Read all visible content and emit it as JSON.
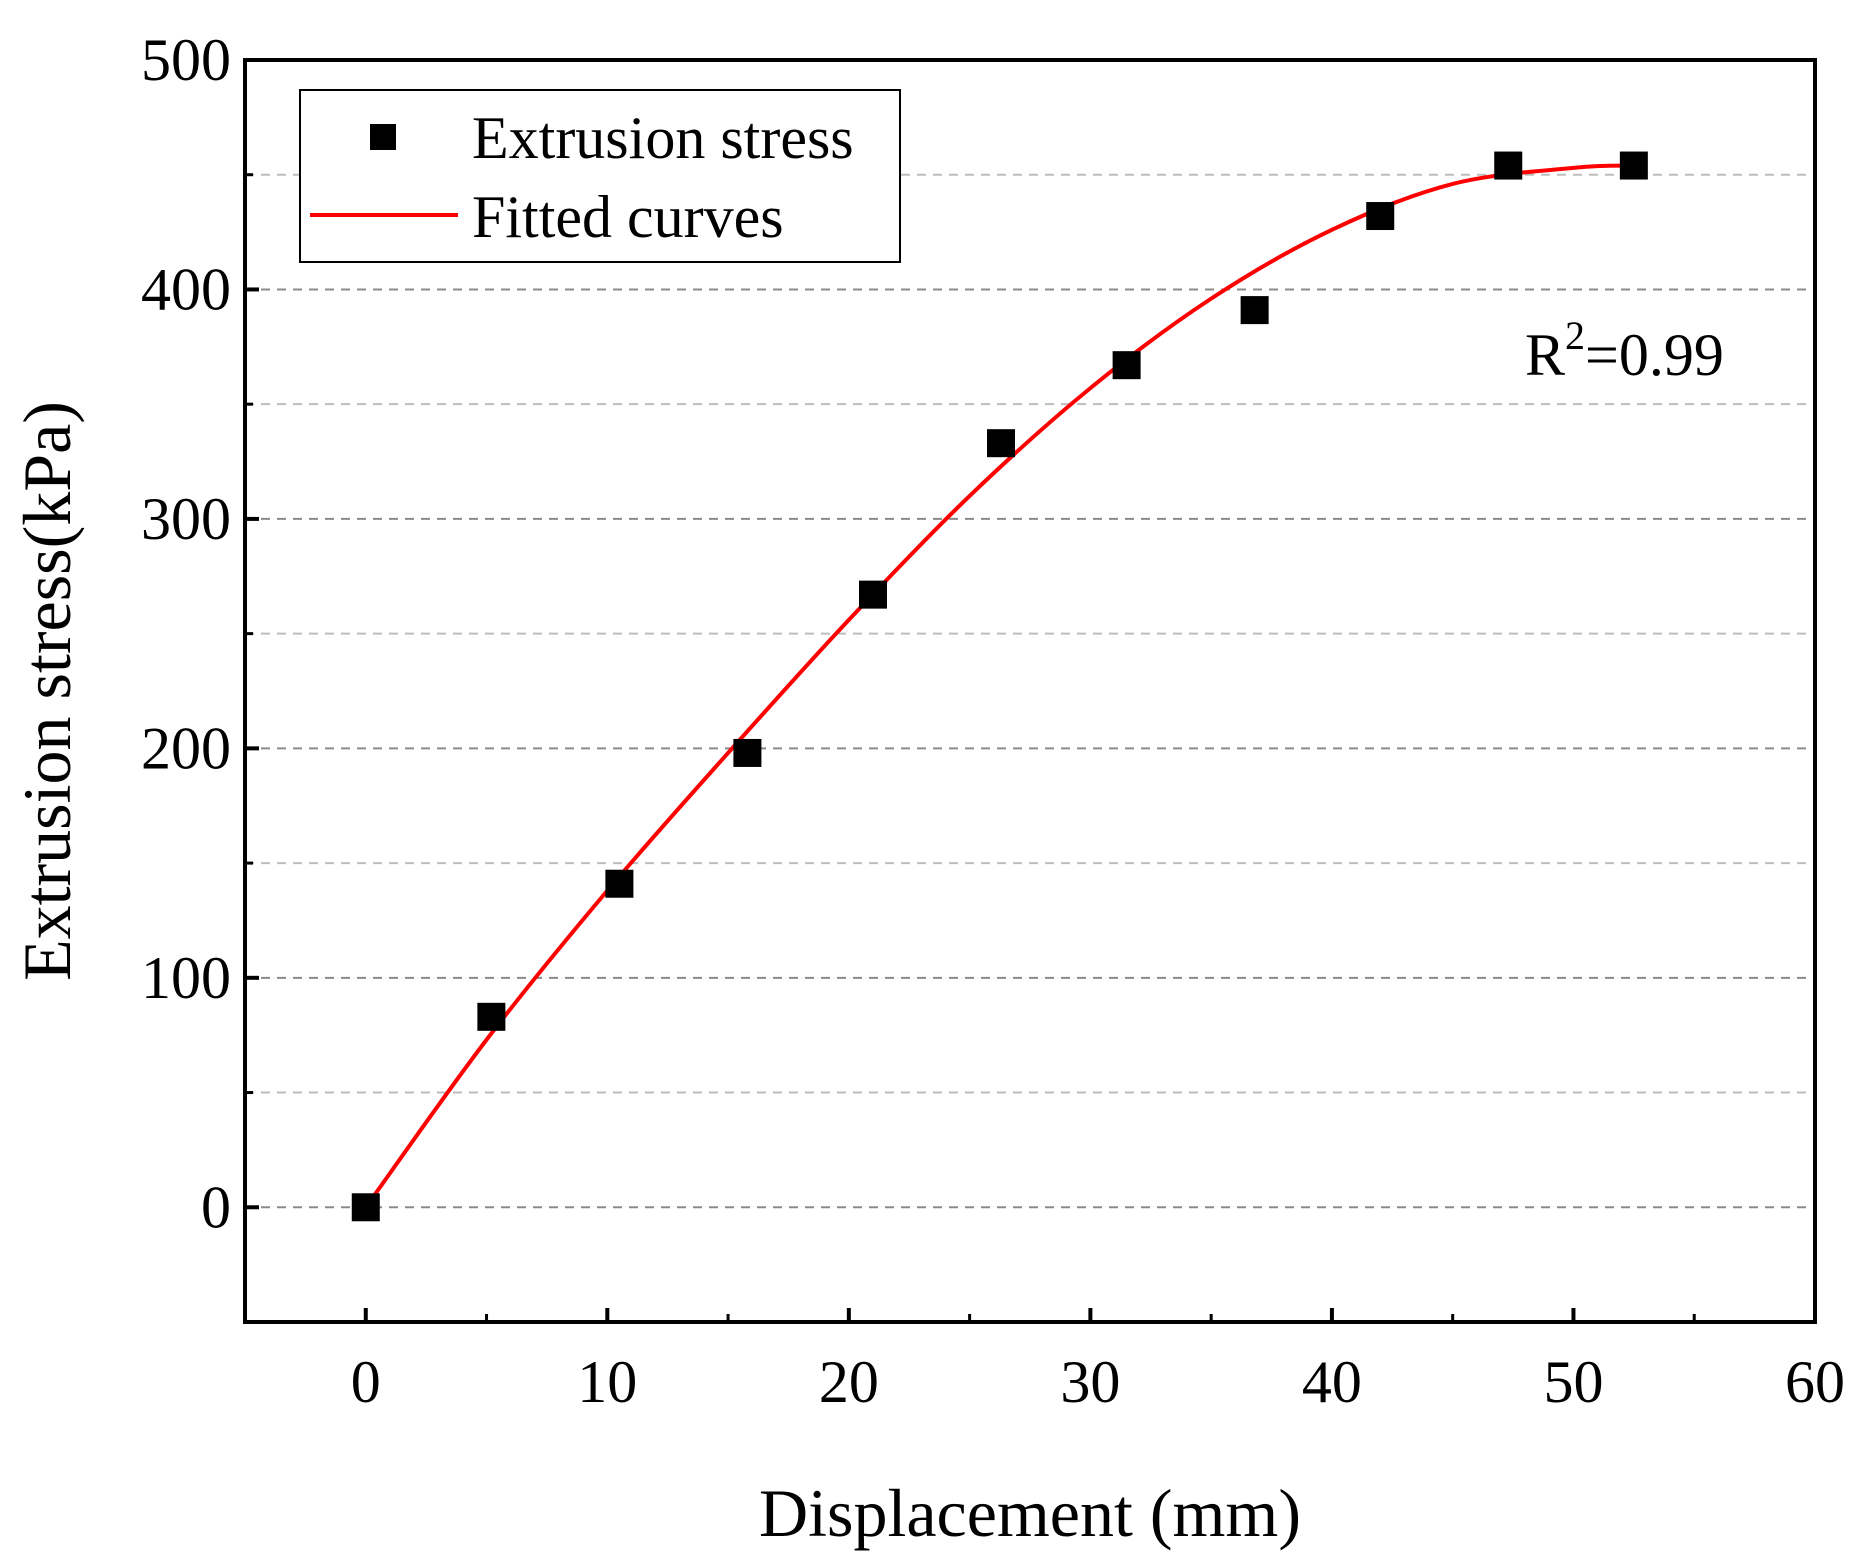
{
  "chart_data": {
    "type": "scatter",
    "xlabel": "Displacement (mm)",
    "ylabel": "Extrusion stress(kPa)",
    "xlim": [
      -5,
      60
    ],
    "ylim": [
      -50,
      500
    ],
    "xticks": [
      0,
      10,
      20,
      30,
      40,
      50,
      60
    ],
    "yticks": [
      0,
      100,
      200,
      300,
      400,
      500
    ],
    "grid": "horizontal dashed",
    "legend_position": "top-left",
    "series": [
      {
        "name": "Extrusion stress",
        "kind": "scatter",
        "marker": "square",
        "color": "#000000",
        "x": [
          0,
          5.2,
          10.5,
          15.8,
          21.0,
          26.3,
          31.5,
          36.8,
          42.0,
          47.3,
          52.5
        ],
        "y": [
          0,
          83,
          141,
          198,
          267,
          333,
          367,
          391,
          432,
          454,
          454
        ]
      },
      {
        "name": "Fitted curves",
        "kind": "line",
        "color": "#ff0000",
        "x": [
          0,
          5,
          10,
          15,
          20,
          25,
          30,
          35,
          40,
          45,
          50,
          52.5
        ],
        "y": [
          0,
          73,
          138,
          198,
          256,
          310,
          357,
          396,
          426,
          446,
          453,
          454
        ]
      }
    ],
    "annotations": [
      {
        "base": "R",
        "sup": "2",
        "rest": "=0.99"
      }
    ]
  }
}
